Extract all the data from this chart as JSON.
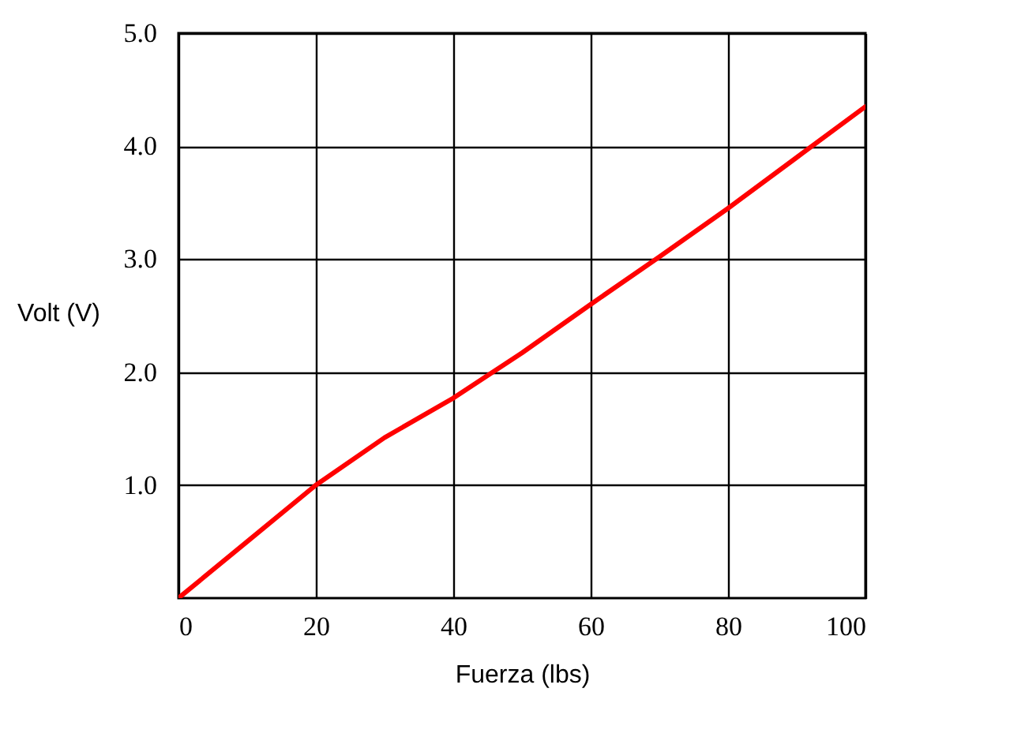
{
  "chart_data": {
    "type": "line",
    "xlabel": "Fuerza  (lbs)",
    "ylabel": "Volt (V)",
    "x": [
      0,
      10,
      20,
      30,
      40,
      50,
      60,
      70,
      80,
      90,
      100
    ],
    "series": [
      {
        "color": "#ff0000",
        "values": [
          0,
          0.5,
          1.0,
          1.42,
          1.77,
          2.17,
          2.6,
          3.02,
          3.45,
          3.9,
          4.35
        ]
      }
    ],
    "xlim": [
      0,
      100
    ],
    "xticks": [
      0,
      20,
      40,
      60,
      80,
      100
    ],
    "ylim": [
      0,
      5
    ],
    "yticks": [
      {
        "value": 1,
        "label": "1.0"
      },
      {
        "value": 2,
        "label": "2.0"
      },
      {
        "value": 3,
        "label": "3.0"
      },
      {
        "value": 4,
        "label": "4.0"
      },
      {
        "value": 5,
        "label": "5.0"
      }
    ],
    "grid": true,
    "marker": "none",
    "line_style": "solid"
  }
}
